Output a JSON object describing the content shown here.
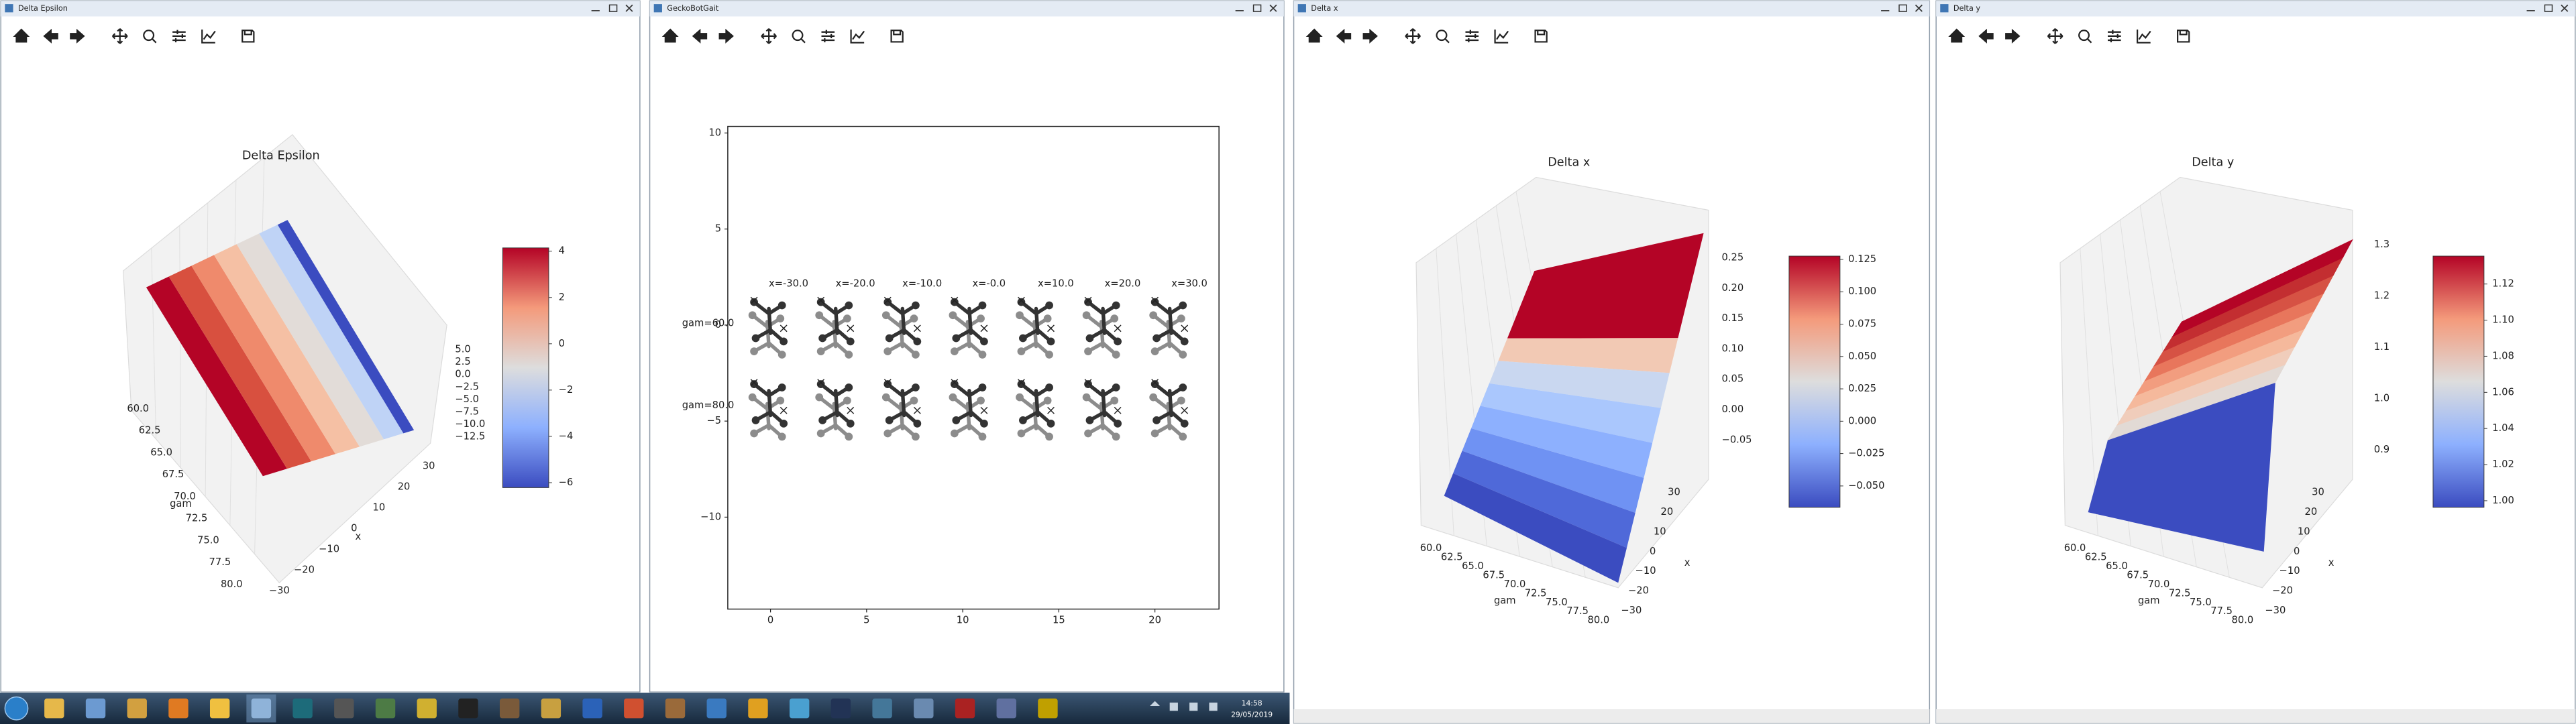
{
  "windows": [
    {
      "title": "Delta Epsilon",
      "plot": {
        "title": "Delta Epsilon",
        "colorbar_ticks": [
          "4",
          "2",
          "0",
          "−2",
          "−4",
          "−6"
        ],
        "z_ticks": [
          "5.0",
          "2.5",
          "0.0",
          "−2.5",
          "−5.0",
          "−7.5",
          "−10.0",
          "−12.5"
        ],
        "gam_ticks": [
          "60.0",
          "62.5",
          "65.0",
          "67.5",
          "70.0",
          "72.5",
          "75.0",
          "77.5",
          "80.0"
        ],
        "gam_label": "gam",
        "x_ticks": [
          "30",
          "20",
          "10",
          "0",
          "−10",
          "−20",
          "−30"
        ],
        "x_label": "x"
      }
    },
    {
      "title": "GeckoBotGait",
      "plot": {
        "y_ticks": [
          "10",
          "5",
          "0",
          "−5",
          "−10"
        ],
        "x_ticks": [
          "0",
          "5",
          "10",
          "15",
          "20"
        ],
        "annotations": [
          "x=-30.0",
          "x=-20.0",
          "x=-10.0",
          "x=-0.0",
          "x=10.0",
          "x=20.0",
          "x=30.0"
        ],
        "row_labels": [
          "gam=60.0",
          "gam=80.0"
        ]
      }
    },
    {
      "title": "Delta x",
      "plot": {
        "title": "Delta x",
        "colorbar_ticks": [
          "0.125",
          "0.100",
          "0.075",
          "0.050",
          "0.025",
          "0.000",
          "−0.025",
          "−0.050"
        ],
        "z_ticks": [
          "0.25",
          "0.20",
          "0.15",
          "0.10",
          "0.05",
          "0.00",
          "−0.05"
        ],
        "gam_ticks": [
          "60.0",
          "62.5",
          "65.0",
          "67.5",
          "70.0",
          "72.5",
          "75.0",
          "77.5",
          "80.0"
        ],
        "gam_label": "gam",
        "x_ticks": [
          "30",
          "20",
          "10",
          "0",
          "−10",
          "−20",
          "−30"
        ],
        "x_label": "x"
      }
    },
    {
      "title": "Delta y",
      "plot": {
        "title": "Delta y",
        "colorbar_ticks": [
          "1.12",
          "1.10",
          "1.08",
          "1.06",
          "1.04",
          "1.02",
          "1.00"
        ],
        "z_ticks": [
          "1.3",
          "1.2",
          "1.1",
          "1.0",
          "0.9"
        ],
        "gam_ticks": [
          "60.0",
          "62.5",
          "65.0",
          "67.5",
          "70.0",
          "72.5",
          "75.0",
          "77.5",
          "80.0"
        ],
        "gam_label": "gam",
        "x_ticks": [
          "30",
          "20",
          "10",
          "0",
          "−10",
          "−20",
          "−30"
        ],
        "x_label": "x"
      }
    }
  ],
  "taskbar": {
    "time": "14:58",
    "date": "29/05/2019"
  }
}
